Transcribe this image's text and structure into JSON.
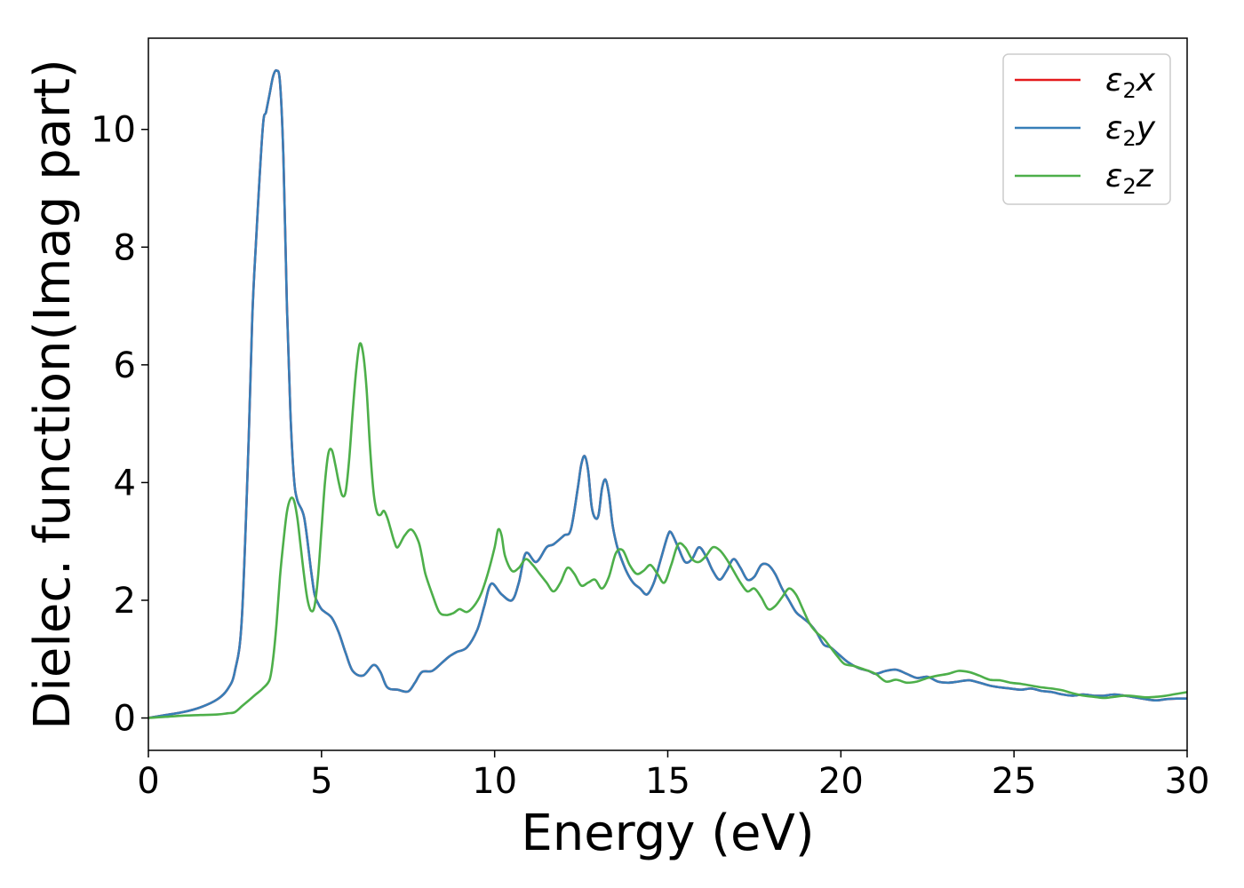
{
  "chart_data": {
    "type": "line",
    "xlabel": "Energy (eV)",
    "ylabel": "Dielec. function(Imag part)",
    "xlim": [
      0,
      30
    ],
    "ylim": [
      -0.55,
      11.55
    ],
    "xticks": [
      0,
      5,
      10,
      15,
      20,
      25,
      30
    ],
    "yticks": [
      0,
      2,
      4,
      6,
      8,
      10
    ],
    "grid": false,
    "legend_position": "top-right",
    "colors": {
      "x": "#e41a1c",
      "y": "#377eb8",
      "z": "#4daf4a"
    },
    "series": [
      {
        "key": "x",
        "legend_main": "ε",
        "legend_sub": "2",
        "legend_suffix": "x",
        "x": [
          0,
          0.5,
          1,
          1.5,
          2,
          2.3,
          2.5,
          2.7,
          2.9,
          3.0,
          3.1,
          3.3,
          3.4,
          3.5,
          3.6,
          3.7,
          3.8,
          3.9,
          4.0,
          4.1,
          4.2,
          4.3,
          4.5,
          4.7,
          4.8,
          4.9,
          5.0,
          5.1,
          5.3,
          5.5,
          5.7,
          5.9,
          6.2,
          6.5,
          6.7,
          6.9,
          7.2,
          7.5,
          7.7,
          7.9,
          8.2,
          8.5,
          8.7,
          8.9,
          9.2,
          9.5,
          9.7,
          9.9,
          10.2,
          10.5,
          10.7,
          10.9,
          11.2,
          11.5,
          11.7,
          12.0,
          12.2,
          12.4,
          12.5,
          12.6,
          12.7,
          12.8,
          12.9,
          13.0,
          13.1,
          13.2,
          13.3,
          13.4,
          13.5,
          13.6,
          13.8,
          14.0,
          14.2,
          14.4,
          14.6,
          14.8,
          15.0,
          15.1,
          15.3,
          15.5,
          15.7,
          15.9,
          16.1,
          16.3,
          16.5,
          16.7,
          16.9,
          17.1,
          17.3,
          17.5,
          17.7,
          17.9,
          18.1,
          18.3,
          18.5,
          18.7,
          18.9,
          19.1,
          19.3,
          19.5,
          19.7,
          19.9,
          20.2,
          20.5,
          20.8,
          21.0,
          21.3,
          21.6,
          21.9,
          22.2,
          22.5,
          22.8,
          23.1,
          23.4,
          23.7,
          24.0,
          24.3,
          24.6,
          24.9,
          25.2,
          25.5,
          25.8,
          26.1,
          26.4,
          26.7,
          27.0,
          27.3,
          27.6,
          27.9,
          28.2,
          28.5,
          28.8,
          29.1,
          29.4,
          29.7,
          30
        ],
        "y": [
          0,
          0.05,
          0.1,
          0.18,
          0.32,
          0.5,
          0.8,
          1.7,
          4.8,
          6.8,
          8.0,
          10.0,
          10.3,
          10.6,
          10.9,
          11.0,
          10.8,
          9.5,
          7.0,
          5.2,
          4.1,
          3.7,
          3.4,
          2.5,
          2.1,
          1.95,
          1.85,
          1.8,
          1.7,
          1.45,
          1.1,
          0.8,
          0.72,
          0.9,
          0.78,
          0.52,
          0.48,
          0.45,
          0.6,
          0.78,
          0.8,
          0.95,
          1.05,
          1.12,
          1.2,
          1.5,
          1.9,
          2.28,
          2.1,
          2.0,
          2.3,
          2.8,
          2.65,
          2.9,
          2.95,
          3.1,
          3.2,
          3.9,
          4.3,
          4.45,
          4.2,
          3.6,
          3.4,
          3.45,
          3.9,
          4.05,
          3.8,
          3.3,
          3.0,
          2.8,
          2.5,
          2.3,
          2.2,
          2.1,
          2.3,
          2.7,
          3.1,
          3.15,
          2.9,
          2.65,
          2.7,
          2.9,
          2.75,
          2.5,
          2.35,
          2.5,
          2.7,
          2.55,
          2.35,
          2.4,
          2.6,
          2.6,
          2.45,
          2.2,
          2.0,
          1.8,
          1.7,
          1.6,
          1.45,
          1.25,
          1.2,
          1.1,
          0.95,
          0.85,
          0.8,
          0.75,
          0.8,
          0.82,
          0.75,
          0.68,
          0.7,
          0.62,
          0.6,
          0.62,
          0.64,
          0.6,
          0.55,
          0.52,
          0.5,
          0.48,
          0.5,
          0.46,
          0.44,
          0.4,
          0.38,
          0.4,
          0.38,
          0.38,
          0.4,
          0.38,
          0.35,
          0.32,
          0.3,
          0.32,
          0.33,
          0.33
        ]
      },
      {
        "key": "y",
        "legend_main": "ε",
        "legend_sub": "2",
        "legend_suffix": "y",
        "x": [
          0,
          0.5,
          1,
          1.5,
          2,
          2.3,
          2.5,
          2.7,
          2.9,
          3.0,
          3.1,
          3.3,
          3.4,
          3.5,
          3.6,
          3.7,
          3.8,
          3.9,
          4.0,
          4.1,
          4.2,
          4.3,
          4.5,
          4.7,
          4.8,
          4.9,
          5.0,
          5.1,
          5.3,
          5.5,
          5.7,
          5.9,
          6.2,
          6.5,
          6.7,
          6.9,
          7.2,
          7.5,
          7.7,
          7.9,
          8.2,
          8.5,
          8.7,
          8.9,
          9.2,
          9.5,
          9.7,
          9.9,
          10.2,
          10.5,
          10.7,
          10.9,
          11.2,
          11.5,
          11.7,
          12.0,
          12.2,
          12.4,
          12.5,
          12.6,
          12.7,
          12.8,
          12.9,
          13.0,
          13.1,
          13.2,
          13.3,
          13.4,
          13.5,
          13.6,
          13.8,
          14.0,
          14.2,
          14.4,
          14.6,
          14.8,
          15.0,
          15.1,
          15.3,
          15.5,
          15.7,
          15.9,
          16.1,
          16.3,
          16.5,
          16.7,
          16.9,
          17.1,
          17.3,
          17.5,
          17.7,
          17.9,
          18.1,
          18.3,
          18.5,
          18.7,
          18.9,
          19.1,
          19.3,
          19.5,
          19.7,
          19.9,
          20.2,
          20.5,
          20.8,
          21.0,
          21.3,
          21.6,
          21.9,
          22.2,
          22.5,
          22.8,
          23.1,
          23.4,
          23.7,
          24.0,
          24.3,
          24.6,
          24.9,
          25.2,
          25.5,
          25.8,
          26.1,
          26.4,
          26.7,
          27.0,
          27.3,
          27.6,
          27.9,
          28.2,
          28.5,
          28.8,
          29.1,
          29.4,
          29.7,
          30
        ],
        "y": [
          0,
          0.05,
          0.1,
          0.18,
          0.32,
          0.5,
          0.8,
          1.7,
          4.8,
          6.8,
          8.0,
          10.0,
          10.3,
          10.6,
          10.9,
          11.0,
          10.8,
          9.5,
          7.0,
          5.2,
          4.1,
          3.7,
          3.4,
          2.5,
          2.1,
          1.95,
          1.85,
          1.8,
          1.7,
          1.45,
          1.1,
          0.8,
          0.72,
          0.9,
          0.78,
          0.52,
          0.48,
          0.45,
          0.6,
          0.78,
          0.8,
          0.95,
          1.05,
          1.12,
          1.2,
          1.5,
          1.9,
          2.28,
          2.1,
          2.0,
          2.3,
          2.8,
          2.65,
          2.9,
          2.95,
          3.1,
          3.2,
          3.9,
          4.3,
          4.45,
          4.2,
          3.6,
          3.4,
          3.45,
          3.9,
          4.05,
          3.8,
          3.3,
          3.0,
          2.8,
          2.5,
          2.3,
          2.2,
          2.1,
          2.3,
          2.7,
          3.1,
          3.15,
          2.9,
          2.65,
          2.7,
          2.9,
          2.75,
          2.5,
          2.35,
          2.5,
          2.7,
          2.55,
          2.35,
          2.4,
          2.6,
          2.6,
          2.45,
          2.2,
          2.0,
          1.8,
          1.7,
          1.6,
          1.45,
          1.25,
          1.2,
          1.1,
          0.95,
          0.85,
          0.8,
          0.75,
          0.8,
          0.82,
          0.75,
          0.68,
          0.7,
          0.62,
          0.6,
          0.62,
          0.64,
          0.6,
          0.55,
          0.52,
          0.5,
          0.48,
          0.5,
          0.46,
          0.44,
          0.4,
          0.38,
          0.4,
          0.38,
          0.38,
          0.4,
          0.38,
          0.35,
          0.32,
          0.3,
          0.32,
          0.33,
          0.33
        ]
      },
      {
        "key": "z",
        "legend_main": "ε",
        "legend_sub": "2",
        "legend_suffix": "z",
        "x": [
          0,
          0.5,
          1,
          1.5,
          2,
          2.3,
          2.5,
          2.7,
          2.9,
          3.1,
          3.3,
          3.5,
          3.6,
          3.7,
          3.8,
          3.9,
          4.0,
          4.1,
          4.2,
          4.3,
          4.4,
          4.5,
          4.6,
          4.7,
          4.8,
          4.9,
          5.0,
          5.1,
          5.2,
          5.3,
          5.4,
          5.5,
          5.6,
          5.7,
          5.8,
          5.9,
          6.0,
          6.1,
          6.2,
          6.3,
          6.4,
          6.5,
          6.6,
          6.7,
          6.8,
          6.9,
          7.0,
          7.1,
          7.2,
          7.4,
          7.6,
          7.8,
          7.9,
          8.0,
          8.2,
          8.4,
          8.6,
          8.8,
          8.9,
          9.0,
          9.2,
          9.4,
          9.6,
          9.8,
          10.0,
          10.1,
          10.2,
          10.3,
          10.5,
          10.7,
          10.9,
          11.1,
          11.3,
          11.5,
          11.7,
          11.9,
          12.1,
          12.3,
          12.5,
          12.7,
          12.9,
          13.1,
          13.3,
          13.5,
          13.7,
          13.9,
          14.1,
          14.3,
          14.5,
          14.7,
          14.9,
          15.1,
          15.3,
          15.5,
          15.7,
          15.9,
          16.1,
          16.3,
          16.5,
          16.7,
          16.9,
          17.1,
          17.3,
          17.5,
          17.7,
          17.9,
          18.1,
          18.3,
          18.5,
          18.7,
          18.9,
          19.1,
          19.3,
          19.5,
          19.7,
          19.9,
          20.1,
          20.4,
          20.7,
          21.0,
          21.3,
          21.6,
          21.9,
          22.2,
          22.5,
          22.8,
          23.1,
          23.4,
          23.7,
          24.0,
          24.3,
          24.6,
          24.9,
          25.2,
          25.5,
          25.8,
          26.1,
          26.4,
          26.7,
          27.0,
          27.3,
          27.6,
          27.9,
          28.2,
          28.5,
          28.8,
          29.1,
          29.4,
          29.7,
          30
        ],
        "y": [
          0,
          0.02,
          0.04,
          0.05,
          0.06,
          0.08,
          0.1,
          0.2,
          0.3,
          0.4,
          0.5,
          0.65,
          1.0,
          1.6,
          2.4,
          3.0,
          3.5,
          3.72,
          3.7,
          3.4,
          2.9,
          2.4,
          2.0,
          1.82,
          1.9,
          2.4,
          3.2,
          4.0,
          4.5,
          4.55,
          4.3,
          4.0,
          3.78,
          3.85,
          4.4,
          5.2,
          5.9,
          6.35,
          6.2,
          5.6,
          4.6,
          3.85,
          3.5,
          3.45,
          3.52,
          3.4,
          3.2,
          3.0,
          2.9,
          3.1,
          3.2,
          3.0,
          2.75,
          2.45,
          2.1,
          1.8,
          1.75,
          1.78,
          1.82,
          1.85,
          1.8,
          1.9,
          2.1,
          2.45,
          2.9,
          3.2,
          3.1,
          2.75,
          2.5,
          2.55,
          2.7,
          2.6,
          2.45,
          2.3,
          2.15,
          2.3,
          2.55,
          2.45,
          2.25,
          2.3,
          2.35,
          2.2,
          2.4,
          2.8,
          2.85,
          2.6,
          2.45,
          2.5,
          2.6,
          2.45,
          2.3,
          2.6,
          2.95,
          2.9,
          2.7,
          2.65,
          2.75,
          2.9,
          2.85,
          2.7,
          2.5,
          2.3,
          2.15,
          2.2,
          2.05,
          1.85,
          1.9,
          2.05,
          2.2,
          2.1,
          1.85,
          1.6,
          1.45,
          1.35,
          1.2,
          1.05,
          0.92,
          0.88,
          0.82,
          0.75,
          0.62,
          0.65,
          0.6,
          0.62,
          0.68,
          0.72,
          0.75,
          0.8,
          0.78,
          0.72,
          0.65,
          0.64,
          0.6,
          0.58,
          0.55,
          0.52,
          0.5,
          0.47,
          0.42,
          0.38,
          0.36,
          0.34,
          0.36,
          0.38,
          0.37,
          0.35,
          0.36,
          0.38,
          0.41,
          0.44
        ]
      }
    ]
  }
}
